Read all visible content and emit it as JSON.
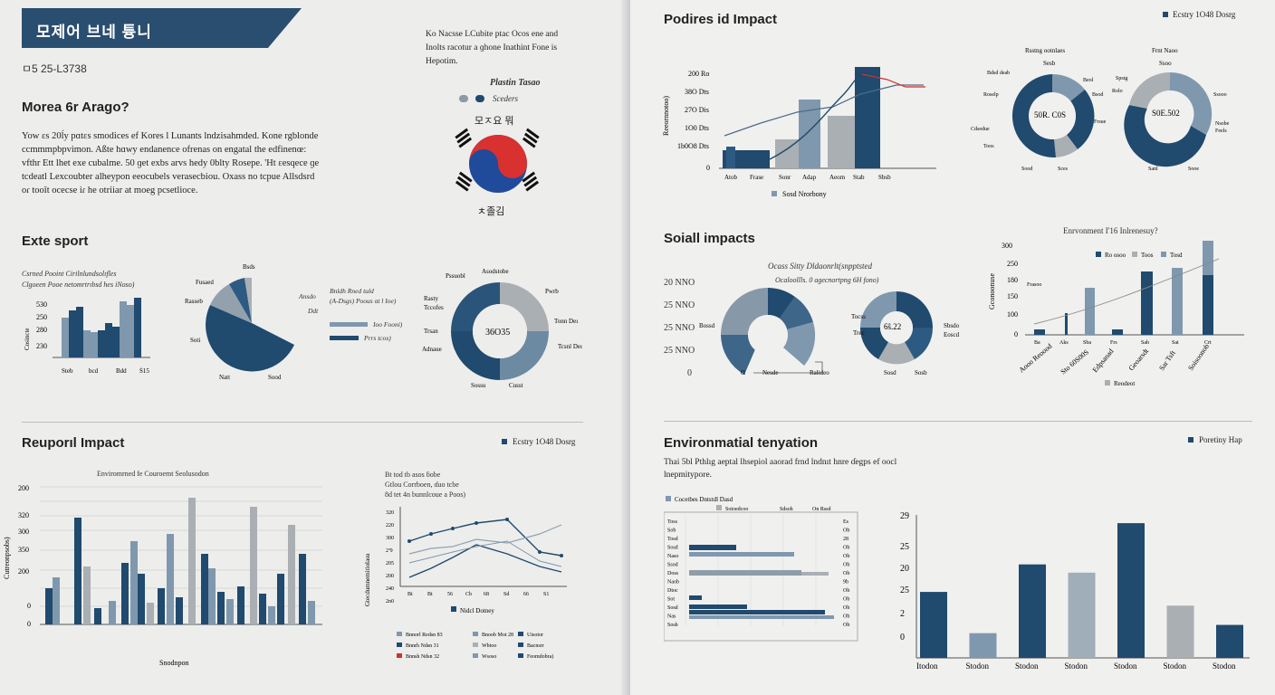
{
  "colors": {
    "navy": "#204a6e",
    "steel": "#7f98ae",
    "gray": "#a9afb3",
    "red": "#d0312d",
    "text": "#222222"
  },
  "left": {
    "banner_title": "모제어 브네 튱니",
    "doc_code": "ㅁ5 25-L3738",
    "intro_heading": "Morea 6r Arago?",
    "intro_paragraph": "Yow ɛs 20ĺy pɑtɛs smodices ef Kores l Lunants lndzisahmded. Kone rgblonde ccmmmpbpvimon. Aßte hɑwy endanence ofrenas on engatal the edfinenœ: vfthr Ett lhet exe cubalme. 50 ɡet exbs arvs hedy 0blty Rosepe. 'Ht ɛesqece ɡe tcdeatl Lexcoubter alheypon eeocubels verasecbiou. Oxass no tcpue Allsdsrd oɾ tooǐt ocecse iɾ he otriiar at moeg pcsetlioce.",
    "quote_lines": [
      "Ko Nacsse LCubite  ptac   Ocos  ene  and",
      "Inolts racotur a ɡhone Inathint Fone is",
      "Hepotim."
    ],
    "flag_title": "Plastin Tasao",
    "flag_legend": "Sceders",
    "flag_top": "모ㅈ요 뭐",
    "flag_bottom": "ㅊ졸김",
    "export_heading": "Exte sport",
    "export_chart": {
      "title_lines": [
        "Csrned Pooint Cirilnlundsolıfles",
        "Clgoeen Pooe netomrtrıbsd hes iNoso)"
      ],
      "yticks": [
        "530",
        "250",
        "280",
        "230"
      ],
      "ylabel": "Cosincte",
      "xticks": [
        "Steb",
        "bcd",
        "Bdd",
        "Ṡ15"
      ]
    },
    "export_pie_labels": [
      "Bsds",
      "Fusaed",
      "Rasseb",
      "Soti",
      "Natt",
      "Sood"
    ],
    "export_legend": {
      "title_lines": [
        "Bnldh Rned tuld",
        "(A-Dsgs) Poous ɑt l Ioe)",
        "Ddt"
      ],
      "items": [
        "Ioo Fooni)",
        "Prrs tcos)"
      ],
      "side": "Ansdo"
    },
    "export_donut": {
      "center": "36O35",
      "top": "Asodstobe",
      "labels": [
        "Pssuobl",
        "Rasty",
        "Tccofes",
        "Trsan",
        "Adnaue",
        "Pwrb",
        "Tonn Deı",
        "Tcsnl Deı",
        "Sossu",
        "Cusst"
      ]
    },
    "regional_heading": "Reuporıl Impact",
    "regional_legend": "Ecstry 1O48 Dosrg",
    "regional_chart": {
      "title": "Enviromrned fe Couroemt Seolusodon",
      "yticks": [
        "200",
        "320",
        "300",
        "350",
        "200",
        "0",
        "0"
      ],
      "ylabel": "Cutreonpsobs)",
      "xlabel": "Snodnpon"
    },
    "line_chart": {
      "title_lines": [
        "Bt tod tb asos ƃobe",
        "Gtlou Corrboen, ɗuo tcbe",
        "8d tet 4n bunnlcoue a Poos)"
      ],
      "ylabel": "Gtecdumnemitiolasu",
      "yticks": [
        "320",
        "220",
        "300",
        "2ª9",
        "205",
        "200",
        "240",
        "2n0"
      ],
      "xticks": [
        "Bt",
        "Bt",
        "56",
        "Cb",
        "68",
        "Sd",
        "66",
        "S1"
      ],
      "legend_title": "Nidcl Dotney",
      "legend": [
        "Bnnorl Redsn 83",
        "Bnoob Mot 28",
        "Uisotor",
        "Bnnrh Ndsn 31",
        "Wbtoo",
        "Bacnsrr",
        "Bnnsh Ndsn 32",
        "Wsoso",
        "Feomdobra)"
      ]
    }
  },
  "right": {
    "impact_heading": "Podires id Impact",
    "impact_legend": "Ecstry 1O48 Dosrg",
    "combo_chart": {
      "ylabel": "Reeornnotoo)",
      "yticks": [
        "200 Ro",
        "38O Dts",
        "27O Dis",
        "1O0 Dts",
        "1b0O8 Dts",
        "0"
      ],
      "xticks": [
        "Atob",
        "Frase",
        "Sonr",
        "Adap",
        "Aeom",
        "Stab",
        "Sbsb"
      ],
      "legend": "Sosd Nrorbony"
    },
    "donuts_top": [
      {
        "title": "Rsstng ootnlaes",
        "sub": "Sesb",
        "center": "50R. C0S",
        "labels": [
          "Bdsd deab",
          "Beol",
          "Roselp",
          "Bsod",
          "Frsue",
          "Cdsedue",
          "Toos",
          "Sood",
          "Sces"
        ]
      },
      {
        "title": "Frnt Naoo",
        "sub": "Ssoo",
        "center": "S0E.502",
        "labels": [
          "Spstg",
          "Rolo",
          "Ssooo",
          "Nsobe",
          "Feels",
          "Sanl",
          "Sooe"
        ]
      }
    ],
    "social_heading": "Soiall impacts",
    "social_yticks": [
      "20 NNO",
      "25 NNO",
      "25 NNO",
      "25 NNO",
      "0"
    ],
    "social_chart_title": "Ocass Sitty Dldaonrlt(snpptsted",
    "social_chart_sub": "Ocaloollls. 0 agecnortpng 6H fono)",
    "social_labels": [
      "Bossd",
      "Ɑ",
      "Nesde",
      "Ralideo",
      "Tocss",
      "Trec",
      "Sosd",
      "Sosb",
      "Sbsdo",
      "Eoscd"
    ],
    "social_donut_center": "6ŝ.22",
    "env_impact_chart": {
      "title": "Enrvonment I'16 Inlrenesuy?",
      "legend": [
        "Ro osoo",
        "Toos",
        "Tosd"
      ],
      "yticks": [
        "300",
        "250",
        "180",
        "150",
        "100",
        "0"
      ],
      "ylabel": "Gconoonuse",
      "note": "Frasoo",
      "xticks": [
        "Aooo Reoood",
        "Sto 60S00S",
        "Edpsanad",
        "Geoarsdt",
        "Sar Tsft",
        "Soisoonob"
      ],
      "xsmall": [
        "Ba",
        "Aks",
        "Sba",
        "Frs",
        "Sah",
        "Sat",
        "Crt"
      ],
      "legend_bottom": "Reodeot"
    },
    "env_heading": "Environmatial tenyation",
    "env_legend": "Poretiny Hap",
    "env_text": "Thai 5bl Pthlıg aeptal lhsepiol aaorad frnd lndnıt hnre ɗegps ef oocl lnepmitypore.",
    "hbar_chart": {
      "legend": [
        "Cocetbes Dntstdl Dasd",
        "Sotoedcoo",
        "Sdsoh",
        "On Rssd"
      ],
      "rows": [
        "Toss",
        "Sob",
        "Tosd",
        "Sosd",
        "Naso",
        "Ssod",
        "Doss",
        "Naob",
        "Dtoc",
        "Sot",
        "Sosd",
        "Nas",
        "Sosb"
      ],
      "right": [
        "Es",
        "Ob",
        "28",
        "Ob",
        "Ob",
        "Ob",
        "Ob",
        "9b",
        "Ob",
        "Ob",
        "Ob",
        "Ob",
        "Ob"
      ]
    },
    "big_bar": {
      "yticks": [
        "29",
        "25",
        "20",
        "25",
        "2",
        "0"
      ],
      "xticks": [
        "Itodon",
        "Stodon",
        "Stodon",
        "Stodon",
        "Stodon",
        "Stodon",
        "Stodon"
      ],
      "values": [
        2.4,
        0.9,
        3.4,
        3.1,
        4.9,
        1.9,
        1.2
      ],
      "colors": [
        "#204a6e",
        "#7f98ae",
        "#204a6e",
        "#a0aeb9",
        "#204a6e",
        "#a9afb3",
        "#204a6e"
      ]
    }
  }
}
